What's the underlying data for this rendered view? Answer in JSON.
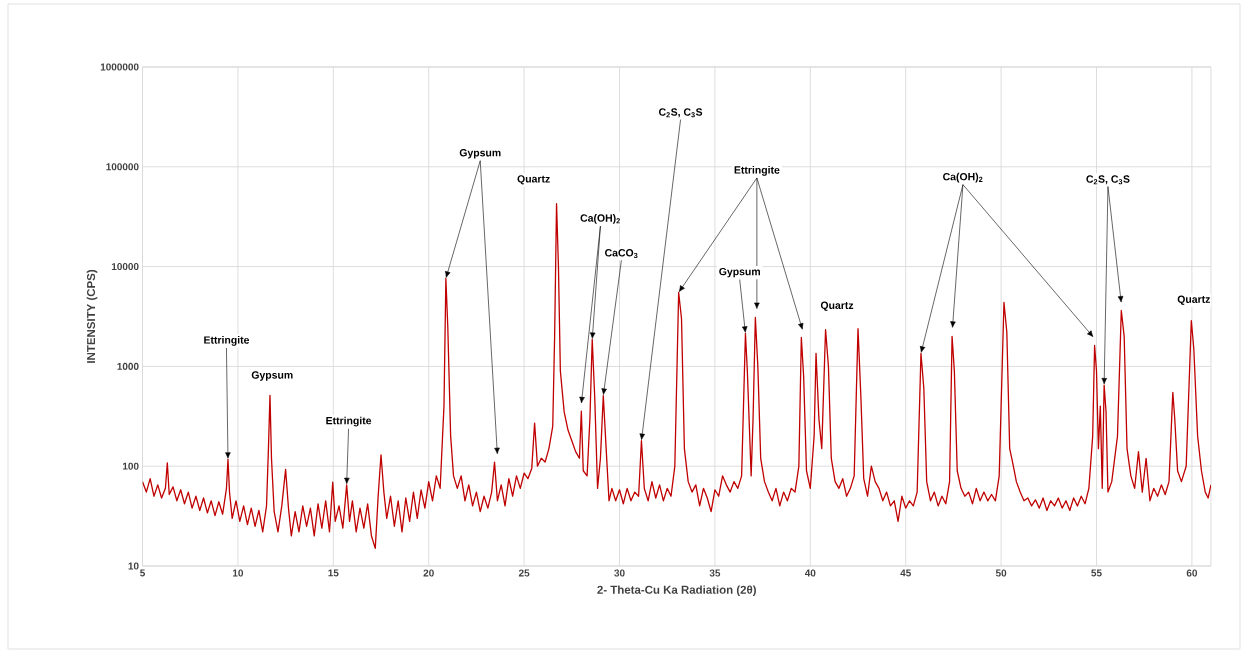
{
  "chart_data": {
    "type": "line",
    "xlabel": "2- Theta-Cu Ka Radiation (2θ)",
    "ylabel": "INTENSITY (CPS)",
    "xlim": [
      5,
      61
    ],
    "ylim": [
      10,
      1000000
    ],
    "xticks": [
      5,
      10,
      15,
      20,
      25,
      30,
      35,
      40,
      45,
      50,
      55,
      60
    ],
    "yticks": [
      10,
      100,
      1000,
      10000,
      100000,
      1000000
    ],
    "log": "y",
    "grid": true,
    "marker": "none",
    "line_style": "solid",
    "series": [
      {
        "color": "#c00000",
        "x": [
          5,
          5.2,
          5.4,
          5.6,
          5.8,
          6.0,
          6.2,
          6.3,
          6.4,
          6.6,
          6.8,
          7.0,
          7.2,
          7.4,
          7.6,
          7.8,
          8.0,
          8.2,
          8.4,
          8.6,
          8.8,
          9.0,
          9.2,
          9.4,
          9.48,
          9.56,
          9.7,
          9.9,
          10.1,
          10.3,
          10.5,
          10.7,
          10.9,
          11.1,
          11.3,
          11.5,
          11.6,
          11.68,
          11.76,
          11.9,
          12.1,
          12.3,
          12.5,
          12.65,
          12.8,
          13.0,
          13.2,
          13.4,
          13.6,
          13.8,
          14.0,
          14.2,
          14.4,
          14.6,
          14.8,
          14.97,
          15.1,
          15.3,
          15.5,
          15.7,
          15.85,
          16.0,
          16.2,
          16.4,
          16.6,
          16.8,
          17.0,
          17.2,
          17.35,
          17.5,
          17.65,
          17.8,
          18.0,
          18.2,
          18.4,
          18.6,
          18.8,
          19.0,
          19.2,
          19.4,
          19.6,
          19.8,
          20.0,
          20.2,
          20.4,
          20.6,
          20.8,
          20.9,
          21.0,
          21.15,
          21.3,
          21.5,
          21.7,
          21.9,
          22.1,
          22.3,
          22.5,
          22.7,
          22.9,
          23.1,
          23.3,
          23.45,
          23.6,
          23.8,
          24.0,
          24.2,
          24.4,
          24.6,
          24.8,
          25.0,
          25.2,
          25.4,
          25.55,
          25.7,
          25.9,
          26.1,
          26.3,
          26.5,
          26.6,
          26.7,
          26.8,
          26.9,
          27.1,
          27.3,
          27.5,
          27.7,
          27.9,
          28.0,
          28.1,
          28.3,
          28.45,
          28.57,
          28.7,
          28.85,
          29.0,
          29.15,
          29.3,
          29.45,
          29.6,
          29.8,
          30.0,
          30.2,
          30.4,
          30.6,
          30.8,
          31.0,
          31.15,
          31.3,
          31.5,
          31.7,
          31.9,
          32.1,
          32.3,
          32.5,
          32.7,
          32.9,
          33.1,
          33.25,
          33.4,
          33.6,
          33.8,
          34.0,
          34.2,
          34.4,
          34.6,
          34.8,
          35.0,
          35.2,
          35.4,
          35.6,
          35.8,
          36.0,
          36.2,
          36.4,
          36.6,
          36.7,
          36.9,
          37.0,
          37.12,
          37.25,
          37.4,
          37.6,
          37.8,
          38.0,
          38.2,
          38.4,
          38.6,
          38.8,
          39.0,
          39.2,
          39.4,
          39.53,
          39.65,
          39.8,
          40.0,
          40.2,
          40.3,
          40.45,
          40.6,
          40.8,
          40.95,
          41.1,
          41.3,
          41.5,
          41.7,
          41.9,
          42.1,
          42.3,
          42.5,
          42.65,
          42.8,
          43.0,
          43.2,
          43.4,
          43.6,
          43.8,
          44.0,
          44.2,
          44.4,
          44.6,
          44.8,
          45.0,
          45.2,
          45.4,
          45.6,
          45.8,
          45.95,
          46.1,
          46.3,
          46.5,
          46.7,
          46.9,
          47.1,
          47.3,
          47.43,
          47.55,
          47.7,
          47.9,
          48.1,
          48.3,
          48.5,
          48.7,
          48.9,
          49.1,
          49.3,
          49.5,
          49.7,
          49.9,
          50.15,
          50.3,
          50.45,
          50.6,
          50.8,
          51.0,
          51.2,
          51.4,
          51.6,
          51.8,
          52.0,
          52.2,
          52.4,
          52.6,
          52.8,
          53.0,
          53.2,
          53.4,
          53.6,
          53.8,
          54.0,
          54.2,
          54.4,
          54.6,
          54.8,
          54.9,
          55.0,
          55.1,
          55.2,
          55.3,
          55.4,
          55.5,
          55.6,
          55.8,
          56.1,
          56.3,
          56.45,
          56.6,
          56.8,
          57.0,
          57.2,
          57.4,
          57.6,
          57.8,
          58.0,
          58.2,
          58.4,
          58.6,
          58.8,
          59.0,
          59.1,
          59.25,
          59.45,
          59.7,
          59.97,
          60.1,
          60.3,
          60.5,
          60.7,
          60.85,
          61.0
        ],
        "values": [
          70,
          55,
          75,
          50,
          65,
          48,
          60,
          108,
          52,
          62,
          45,
          58,
          42,
          55,
          38,
          50,
          36,
          48,
          34,
          45,
          32,
          44,
          33,
          60,
          117,
          55,
          30,
          45,
          28,
          40,
          26,
          38,
          25,
          36,
          22,
          40,
          150,
          513,
          120,
          35,
          22,
          40,
          93,
          38,
          20,
          35,
          22,
          40,
          25,
          38,
          20,
          42,
          24,
          45,
          22,
          69,
          28,
          40,
          24,
          65,
          28,
          45,
          22,
          38,
          24,
          42,
          20,
          15,
          50,
          130,
          55,
          30,
          50,
          25,
          45,
          22,
          48,
          28,
          55,
          30,
          58,
          38,
          70,
          45,
          80,
          60,
          400,
          7600,
          2500,
          200,
          80,
          60,
          80,
          45,
          65,
          40,
          55,
          35,
          50,
          38,
          55,
          110,
          45,
          65,
          40,
          75,
          50,
          80,
          60,
          85,
          75,
          95,
          270,
          100,
          120,
          110,
          150,
          250,
          2000,
          42700,
          10000,
          900,
          350,
          230,
          180,
          140,
          120,
          355,
          90,
          80,
          300,
          1860,
          500,
          60,
          120,
          510,
          150,
          45,
          60,
          45,
          58,
          42,
          60,
          45,
          55,
          50,
          180,
          60,
          45,
          70,
          48,
          65,
          45,
          60,
          50,
          100,
          5500,
          3000,
          150,
          70,
          55,
          65,
          40,
          60,
          48,
          35,
          58,
          50,
          80,
          65,
          55,
          70,
          60,
          80,
          2140,
          900,
          80,
          300,
          3090,
          1000,
          120,
          70,
          55,
          45,
          60,
          40,
          55,
          45,
          60,
          55,
          100,
          1950,
          800,
          90,
          60,
          200,
          1350,
          300,
          150,
          2340,
          1000,
          120,
          70,
          60,
          75,
          50,
          60,
          80,
          2390,
          500,
          75,
          50,
          100,
          70,
          60,
          45,
          55,
          40,
          45,
          28,
          50,
          38,
          45,
          40,
          55,
          1350,
          600,
          70,
          45,
          55,
          40,
          50,
          42,
          70,
          2000,
          900,
          90,
          60,
          50,
          55,
          42,
          60,
          45,
          55,
          45,
          52,
          45,
          80,
          4370,
          2200,
          150,
          110,
          70,
          55,
          45,
          48,
          40,
          46,
          38,
          48,
          36,
          45,
          40,
          48,
          38,
          45,
          36,
          48,
          40,
          50,
          42,
          60,
          200,
          1620,
          900,
          150,
          400,
          60,
          650,
          350,
          55,
          70,
          200,
          3630,
          2000,
          150,
          80,
          60,
          140,
          55,
          120,
          45,
          60,
          50,
          65,
          52,
          70,
          550,
          300,
          90,
          70,
          100,
          2880,
          1500,
          200,
          90,
          55,
          48,
          65
        ]
      }
    ],
    "annotations": [
      {
        "text": "Ettringite",
        "x": 9.48,
        "y": 117
      },
      {
        "text": "Gypsum",
        "x": 11.68,
        "y": 513
      },
      {
        "text": "Ettringite",
        "x": 15.7,
        "y": 65
      },
      {
        "text": "Gypsum",
        "x": 20.9,
        "y": 7600
      },
      {
        "text": "Quartz",
        "x": 26.7,
        "y": 42700
      },
      {
        "text": "Ca(OH)$_{2}$",
        "x": 28.57,
        "y": 1860
      },
      {
        "text": "CaCO$_{3}$",
        "x": 29.15,
        "y": 510
      },
      {
        "text": "C$_{2}$S, C$_{3}$S",
        "x": 31.15,
        "y": 180
      },
      {
        "text": "Ettringite",
        "x": 33.1,
        "y": 5500
      },
      {
        "text": "Gypsum",
        "x": 36.6,
        "y": 2140
      },
      {
        "text": "Quartz",
        "x": 42.5,
        "y": 2390
      },
      {
        "text": "Ca(OH)$_{2}$",
        "x": 45.8,
        "y": 1350
      },
      {
        "text": "C$_{2}$S, C$_{3}$S",
        "x": 55.4,
        "y": 650
      },
      {
        "text": "Quartz",
        "x": 59.97,
        "y": 2880
      }
    ]
  }
}
